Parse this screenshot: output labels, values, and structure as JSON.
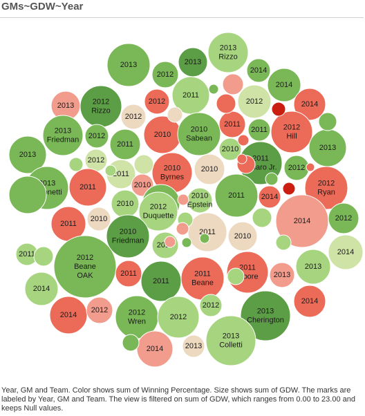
{
  "title": "GMs~GDW~Year",
  "caption": "Year, GM and Team.  Color shows sum of Winning Percentage.  Size shows sum of GDW.  The marks are labeled by Year, GM and Team. The view is filtered on sum of GDW, which ranges from 0.00 to 23.00 and keeps Null values.",
  "colors": {
    "dark_green": "#5c9e45",
    "mid_green": "#7ab857",
    "light_green": "#a7d57f",
    "pale_green": "#cfe3a6",
    "beige": "#ecd9c0",
    "light_red": "#f29c8d",
    "red": "#ec6b58",
    "dark_red": "#c91e10"
  },
  "chart_data": {
    "type": "packed-bubble",
    "encoding": {
      "label": "Year, GM and Team",
      "color": "sum of Winning Percentage",
      "size": "sum of GDW"
    },
    "marks": [
      {
        "lines": [
          "2013"
        ],
        "c": "mid_green"
      },
      {
        "lines": [
          "2012"
        ],
        "c": "mid_green"
      },
      {
        "lines": [
          "2013"
        ],
        "c": "dark_green"
      },
      {
        "lines": [
          "2013",
          "Rizzo"
        ],
        "c": "light_green"
      },
      {
        "lines": [
          "2014"
        ],
        "c": "mid_green"
      },
      {
        "lines": [
          "2014"
        ],
        "c": "mid_green"
      },
      {
        "lines": [
          "2013"
        ],
        "c": "light_red"
      },
      {
        "lines": [
          "2012",
          "Rizzo"
        ],
        "c": "dark_green"
      },
      {
        "lines": [
          "2012"
        ],
        "c": "red"
      },
      {
        "lines": [
          "2011"
        ],
        "c": "light_green"
      },
      {
        "lines": [
          "2012"
        ],
        "c": "pale_green"
      },
      {
        "lines": [
          "2014"
        ],
        "c": "red"
      },
      {
        "lines": [
          "2012"
        ],
        "c": "beige"
      },
      {
        "lines": [
          "2010"
        ],
        "c": "red"
      },
      {
        "lines": [
          "2010",
          "Sabean"
        ],
        "c": "mid_green"
      },
      {
        "lines": [
          "2011"
        ],
        "c": "red"
      },
      {
        "lines": [
          "2011"
        ],
        "c": "mid_green"
      },
      {
        "lines": [
          "2012",
          "Hill"
        ],
        "c": "red"
      },
      {
        "lines": [
          "2013",
          "Friedman"
        ],
        "c": "mid_green"
      },
      {
        "lines": [
          "2012"
        ],
        "c": "mid_green"
      },
      {
        "lines": [
          "2011"
        ],
        "c": "mid_green"
      },
      {
        "lines": [
          "2013"
        ],
        "c": "mid_green"
      },
      {
        "lines": [
          "2010"
        ],
        "c": "light_green"
      },
      {
        "lines": [
          "2013"
        ],
        "c": "mid_green"
      },
      {
        "lines": [
          "2012"
        ],
        "c": "pale_green"
      },
      {
        "lines": [
          "2011"
        ],
        "c": "pale_green"
      },
      {
        "lines": [
          "2010",
          "Byrnes"
        ],
        "c": "red"
      },
      {
        "lines": [
          "2010"
        ],
        "c": "beige"
      },
      {
        "lines": [
          "2011",
          "Amaro Jr."
        ],
        "c": "dark_green"
      },
      {
        "lines": [
          "2012"
        ],
        "c": "mid_green"
      },
      {
        "lines": [
          "2012",
          "Ryan"
        ],
        "c": "red"
      },
      {
        "lines": [
          "2013",
          "Antonetti"
        ],
        "c": "mid_green"
      },
      {
        "lines": [
          "2011"
        ],
        "c": "red"
      },
      {
        "lines": [
          "2010"
        ],
        "c": "light_red"
      },
      {
        "lines": [
          "2010"
        ],
        "c": "light_green"
      },
      {
        "lines": [
          "2010"
        ],
        "c": "mid_green"
      },
      {
        "lines": [
          "2010",
          "Epstein"
        ],
        "c": "light_green"
      },
      {
        "lines": [
          "2011"
        ],
        "c": "mid_green"
      },
      {
        "lines": [
          "2014"
        ],
        "c": "red"
      },
      {
        "lines": [
          "2012"
        ],
        "c": "mid_green"
      },
      {
        "lines": [
          "2011"
        ],
        "c": "red"
      },
      {
        "lines": [
          "2010"
        ],
        "c": "beige"
      },
      {
        "lines": [
          "2012",
          "Duquette"
        ],
        "c": "light_green"
      },
      {
        "lines": [
          "2014"
        ],
        "c": "light_red"
      },
      {
        "lines": [
          "2010",
          "Smith"
        ],
        "c": "mid_green"
      },
      {
        "lines": [
          "2010",
          "Friedman"
        ],
        "c": "dark_green"
      },
      {
        "lines": [
          "2011"
        ],
        "c": "beige"
      },
      {
        "lines": [
          "2010"
        ],
        "c": "beige"
      },
      {
        "lines": [
          "2014"
        ],
        "c": "light_green"
      },
      {
        "lines": [
          "2011"
        ],
        "c": "light_green"
      },
      {
        "lines": [
          "2014"
        ],
        "c": "pale_green"
      },
      {
        "lines": [
          "2012",
          "Beane",
          "OAK"
        ],
        "c": "mid_green"
      },
      {
        "lines": [
          "2011"
        ],
        "c": "red"
      },
      {
        "lines": [
          "2011"
        ],
        "c": "dark_green"
      },
      {
        "lines": [
          "2011",
          "Beane"
        ],
        "c": "red"
      },
      {
        "lines": [
          "2011",
          "Moore"
        ],
        "c": "red"
      },
      {
        "lines": [
          "2013"
        ],
        "c": "light_red"
      },
      {
        "lines": [
          "2013"
        ],
        "c": "light_green"
      },
      {
        "lines": [
          "2014"
        ],
        "c": "light_green"
      },
      {
        "lines": [
          "2014"
        ],
        "c": "red"
      },
      {
        "lines": [
          "2012"
        ],
        "c": "light_red"
      },
      {
        "lines": [
          "2012",
          "Wren"
        ],
        "c": "mid_green"
      },
      {
        "lines": [
          "2012"
        ],
        "c": "light_green"
      },
      {
        "lines": [
          "2012"
        ],
        "c": "light_green"
      },
      {
        "lines": [
          "2013",
          "Cherington"
        ],
        "c": "dark_green"
      },
      {
        "lines": [
          "2014"
        ],
        "c": "red"
      },
      {
        "lines": [
          "2014"
        ],
        "c": "light_red"
      },
      {
        "lines": [
          "2013"
        ],
        "c": "beige"
      },
      {
        "lines": [
          "2013",
          "Colletti"
        ],
        "c": "light_green"
      },
      {
        "lines": [],
        "c": "mid_green"
      },
      {
        "lines": [],
        "c": "red"
      },
      {
        "lines": [],
        "c": "light_red"
      },
      {
        "lines": [],
        "c": "mid_green"
      },
      {
        "lines": [],
        "c": "dark_red"
      },
      {
        "lines": [],
        "c": "red"
      },
      {
        "lines": [],
        "c": "red"
      },
      {
        "lines": [],
        "c": "mid_green"
      },
      {
        "lines": [],
        "c": "beige"
      },
      {
        "lines": [],
        "c": "pale_green"
      },
      {
        "lines": [],
        "c": "light_green"
      },
      {
        "lines": [],
        "c": "mid_green"
      },
      {
        "lines": [],
        "c": "light_green"
      },
      {
        "lines": [],
        "c": "light_red"
      },
      {
        "lines": [],
        "c": "light_green"
      },
      {
        "lines": [],
        "c": "light_green"
      },
      {
        "lines": [],
        "c": "light_red"
      },
      {
        "lines": [],
        "c": "mid_green"
      },
      {
        "lines": [],
        "c": "light_green"
      },
      {
        "lines": [],
        "c": "light_green"
      },
      {
        "lines": [],
        "c": "mid_green"
      },
      {
        "lines": [],
        "c": "red"
      },
      {
        "lines": [],
        "c": "light_green"
      },
      {
        "lines": [],
        "c": "light_red"
      },
      {
        "lines": [],
        "c": "mid_green"
      },
      {
        "lines": [],
        "c": "red"
      },
      {
        "lines": [],
        "c": "dark_red"
      }
    ]
  }
}
